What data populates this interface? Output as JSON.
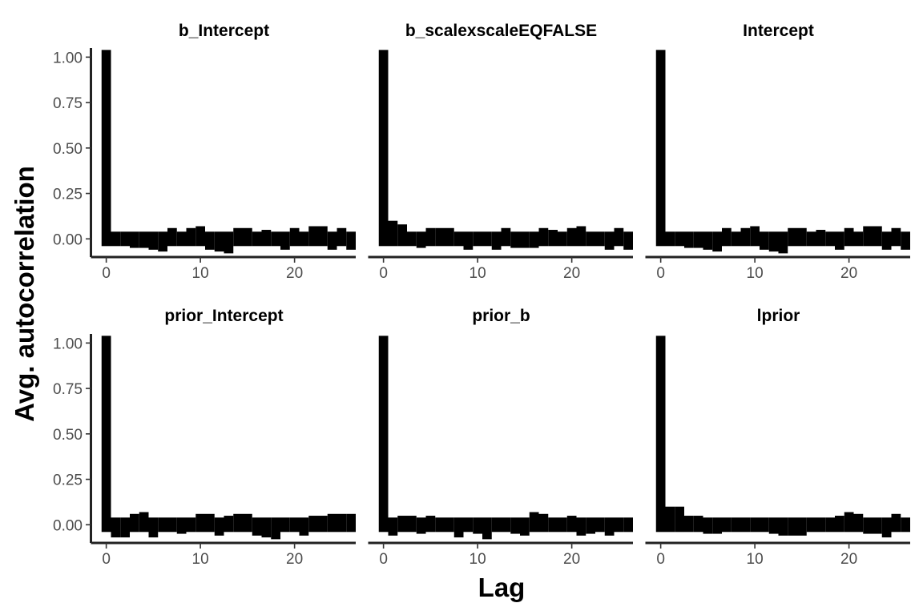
{
  "chart_data": {
    "type": "bar",
    "xlabel": "Lag",
    "ylabel": "Avg.  autocorrelation",
    "xlim": [
      -1.5,
      26.5
    ],
    "ylim": [
      -0.1,
      1.05
    ],
    "x_ticks": [
      0,
      10,
      20
    ],
    "y_ticks": [
      0.0,
      0.25,
      0.5,
      0.75,
      1.0
    ],
    "y_tick_labels": [
      "0.00",
      "0.25",
      "0.50",
      "0.75",
      "1.00"
    ],
    "grid": false,
    "legend": "none",
    "bar_color": "#000000",
    "lags": [
      0,
      1,
      2,
      3,
      4,
      5,
      6,
      7,
      8,
      9,
      10,
      11,
      12,
      13,
      14,
      15,
      16,
      17,
      18,
      19,
      20,
      21,
      22,
      23,
      24,
      25,
      26
    ],
    "panels": [
      {
        "title": "b_Intercept",
        "values": [
          1.0,
          0.0,
          0.0,
          -0.01,
          -0.01,
          -0.02,
          -0.03,
          0.02,
          0.0,
          0.02,
          0.03,
          -0.02,
          -0.03,
          -0.04,
          0.02,
          0.02,
          0.0,
          0.01,
          0.0,
          -0.02,
          0.02,
          0.0,
          0.03,
          0.03,
          -0.02,
          0.02,
          -0.02
        ]
      },
      {
        "title": "b_scalexscaleEQFALSE",
        "values": [
          1.0,
          0.06,
          0.04,
          0.0,
          -0.01,
          0.02,
          0.02,
          0.02,
          0.0,
          -0.02,
          0.0,
          0.0,
          -0.02,
          0.02,
          -0.01,
          -0.01,
          -0.01,
          0.02,
          0.01,
          0.0,
          0.02,
          0.03,
          0.0,
          0.0,
          -0.02,
          0.02,
          -0.02
        ]
      },
      {
        "title": "Intercept",
        "values": [
          1.0,
          0.0,
          0.0,
          -0.01,
          -0.01,
          -0.02,
          -0.03,
          0.02,
          0.0,
          0.02,
          0.03,
          -0.02,
          -0.03,
          -0.04,
          0.02,
          0.02,
          0.0,
          0.01,
          0.0,
          -0.02,
          0.02,
          0.0,
          0.03,
          0.03,
          -0.02,
          0.02,
          -0.02
        ]
      },
      {
        "title": "prior_Intercept",
        "values": [
          1.0,
          -0.03,
          -0.03,
          0.02,
          0.03,
          -0.03,
          0.0,
          0.0,
          -0.01,
          0.0,
          0.02,
          0.02,
          -0.02,
          0.01,
          0.02,
          0.02,
          -0.02,
          -0.03,
          -0.04,
          0.0,
          0.0,
          -0.02,
          0.01,
          0.01,
          0.02,
          0.02,
          0.02
        ]
      },
      {
        "title": "prior_b",
        "values": [
          1.0,
          -0.02,
          0.01,
          0.01,
          -0.01,
          0.01,
          0.0,
          0.0,
          -0.03,
          0.0,
          -0.01,
          -0.04,
          0.0,
          0.0,
          -0.01,
          -0.02,
          0.03,
          0.02,
          0.0,
          0.0,
          0.01,
          -0.02,
          -0.01,
          0.0,
          -0.02,
          0.0,
          0.0
        ]
      },
      {
        "title": "lprior",
        "values": [
          1.0,
          0.06,
          0.06,
          0.01,
          0.01,
          -0.01,
          -0.01,
          0.0,
          0.0,
          0.0,
          0.0,
          0.0,
          -0.01,
          -0.02,
          -0.02,
          -0.02,
          0.0,
          0.0,
          0.0,
          0.01,
          0.03,
          0.02,
          -0.01,
          -0.01,
          -0.03,
          0.02,
          0.0
        ]
      }
    ]
  }
}
